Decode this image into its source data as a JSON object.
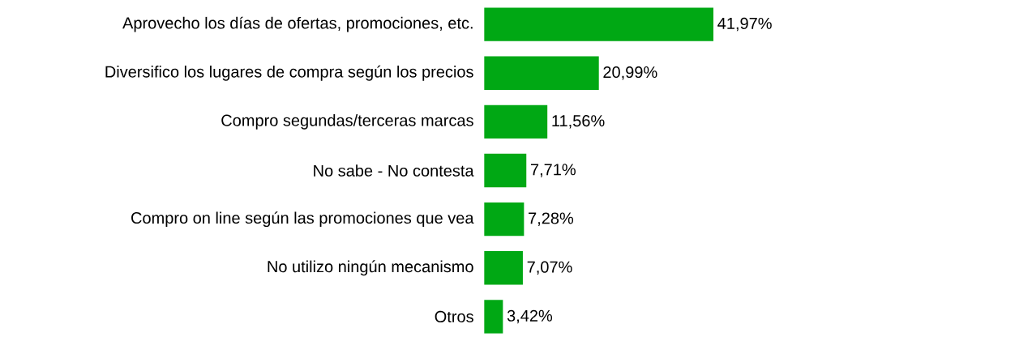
{
  "chart_data": {
    "type": "bar",
    "orientation": "horizontal",
    "categories": [
      "Aprovecho los días de ofertas, promociones, etc.",
      "Diversifico los lugares de compra según los precios",
      "Compro segundas/terceras marcas",
      "No sabe - No contesta",
      "Compro on line según las promociones que vea",
      "No utilizo ningún mecanismo",
      "Otros"
    ],
    "values": [
      41.97,
      20.99,
      11.56,
      7.71,
      7.28,
      7.07,
      3.42
    ],
    "value_labels": [
      "41,97%",
      "20,99%",
      "11,56%",
      "7,71%",
      "7,28%",
      "7,07%",
      "3,42%"
    ],
    "color": "#00a814",
    "tick_labels": "y"
  }
}
